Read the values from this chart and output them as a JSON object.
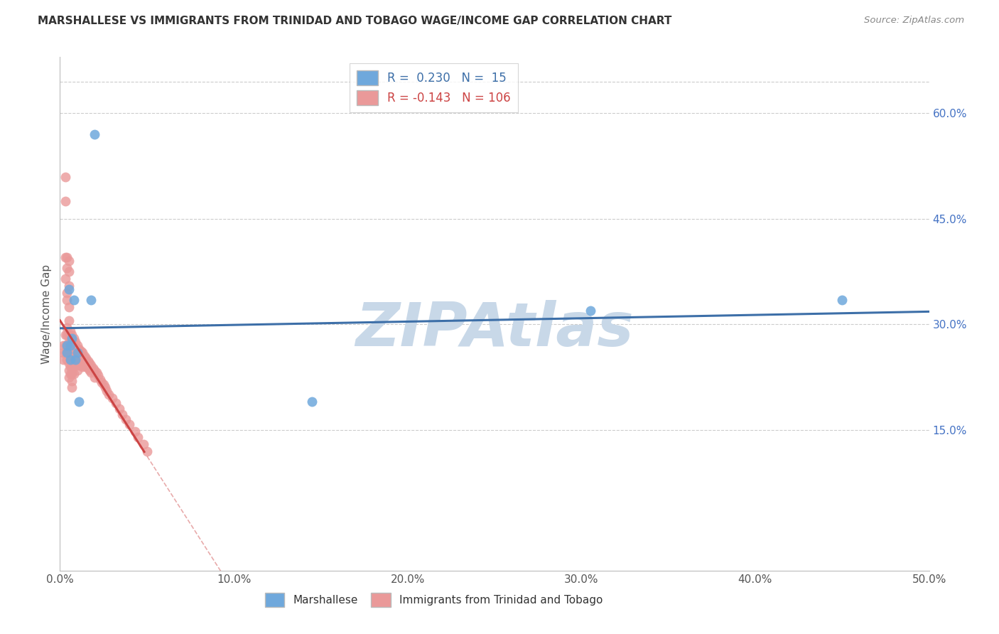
{
  "title": "MARSHALLESE VS IMMIGRANTS FROM TRINIDAD AND TOBAGO WAGE/INCOME GAP CORRELATION CHART",
  "source": "Source: ZipAtlas.com",
  "ylabel": "Wage/Income Gap",
  "xlim": [
    0.0,
    0.5
  ],
  "ylim": [
    -0.05,
    0.68
  ],
  "xtick_labels": [
    "0.0%",
    "10.0%",
    "20.0%",
    "30.0%",
    "40.0%",
    "50.0%"
  ],
  "xtick_vals": [
    0.0,
    0.1,
    0.2,
    0.3,
    0.4,
    0.5
  ],
  "ytick_right_labels": [
    "15.0%",
    "30.0%",
    "45.0%",
    "60.0%"
  ],
  "ytick_right_vals": [
    0.15,
    0.3,
    0.45,
    0.6
  ],
  "blue_R": 0.23,
  "blue_N": 15,
  "pink_R": -0.143,
  "pink_N": 106,
  "blue_color": "#6fa8dc",
  "pink_color": "#ea9999",
  "blue_line_color": "#3d6fa8",
  "pink_line_color": "#cc4444",
  "blue_label": "Marshallese",
  "pink_label": "Immigrants from Trinidad and Tobago",
  "watermark": "ZIPAtlas",
  "watermark_color": "#c8d8e8",
  "grid_color": "#cccccc",
  "blue_x": [
    0.004,
    0.004,
    0.005,
    0.006,
    0.006,
    0.007,
    0.008,
    0.009,
    0.01,
    0.011,
    0.018,
    0.02,
    0.145,
    0.305,
    0.45
  ],
  "blue_y": [
    0.27,
    0.26,
    0.35,
    0.27,
    0.25,
    0.28,
    0.335,
    0.25,
    0.26,
    0.19,
    0.335,
    0.57,
    0.19,
    0.32,
    0.335
  ],
  "pink_x": [
    0.002,
    0.002,
    0.002,
    0.003,
    0.003,
    0.003,
    0.003,
    0.003,
    0.003,
    0.003,
    0.004,
    0.004,
    0.004,
    0.004,
    0.004,
    0.004,
    0.004,
    0.004,
    0.004,
    0.005,
    0.005,
    0.005,
    0.005,
    0.005,
    0.005,
    0.005,
    0.005,
    0.005,
    0.005,
    0.005,
    0.005,
    0.006,
    0.006,
    0.006,
    0.006,
    0.006,
    0.006,
    0.006,
    0.007,
    0.007,
    0.007,
    0.007,
    0.007,
    0.007,
    0.007,
    0.007,
    0.007,
    0.007,
    0.008,
    0.008,
    0.008,
    0.008,
    0.008,
    0.008,
    0.008,
    0.009,
    0.009,
    0.009,
    0.009,
    0.009,
    0.01,
    0.01,
    0.01,
    0.01,
    0.01,
    0.01,
    0.011,
    0.011,
    0.011,
    0.012,
    0.012,
    0.012,
    0.013,
    0.013,
    0.013,
    0.014,
    0.014,
    0.015,
    0.015,
    0.016,
    0.016,
    0.017,
    0.017,
    0.018,
    0.018,
    0.019,
    0.02,
    0.02,
    0.021,
    0.022,
    0.023,
    0.024,
    0.025,
    0.026,
    0.027,
    0.028,
    0.03,
    0.032,
    0.034,
    0.036,
    0.038,
    0.04,
    0.043,
    0.045,
    0.048,
    0.05
  ],
  "pink_y": [
    0.27,
    0.26,
    0.25,
    0.51,
    0.475,
    0.395,
    0.365,
    0.285,
    0.27,
    0.26,
    0.395,
    0.38,
    0.345,
    0.335,
    0.295,
    0.285,
    0.27,
    0.26,
    0.25,
    0.39,
    0.375,
    0.355,
    0.325,
    0.305,
    0.285,
    0.275,
    0.265,
    0.255,
    0.245,
    0.235,
    0.225,
    0.29,
    0.28,
    0.27,
    0.26,
    0.25,
    0.24,
    0.23,
    0.285,
    0.275,
    0.27,
    0.265,
    0.255,
    0.248,
    0.24,
    0.23,
    0.22,
    0.21,
    0.28,
    0.27,
    0.265,
    0.255,
    0.248,
    0.24,
    0.23,
    0.275,
    0.265,
    0.26,
    0.252,
    0.242,
    0.27,
    0.265,
    0.258,
    0.25,
    0.242,
    0.235,
    0.265,
    0.258,
    0.248,
    0.262,
    0.252,
    0.242,
    0.26,
    0.25,
    0.24,
    0.255,
    0.245,
    0.252,
    0.24,
    0.248,
    0.238,
    0.245,
    0.235,
    0.242,
    0.232,
    0.238,
    0.235,
    0.225,
    0.232,
    0.228,
    0.222,
    0.218,
    0.215,
    0.21,
    0.205,
    0.2,
    0.195,
    0.188,
    0.18,
    0.172,
    0.165,
    0.158,
    0.148,
    0.14,
    0.13,
    0.12
  ]
}
